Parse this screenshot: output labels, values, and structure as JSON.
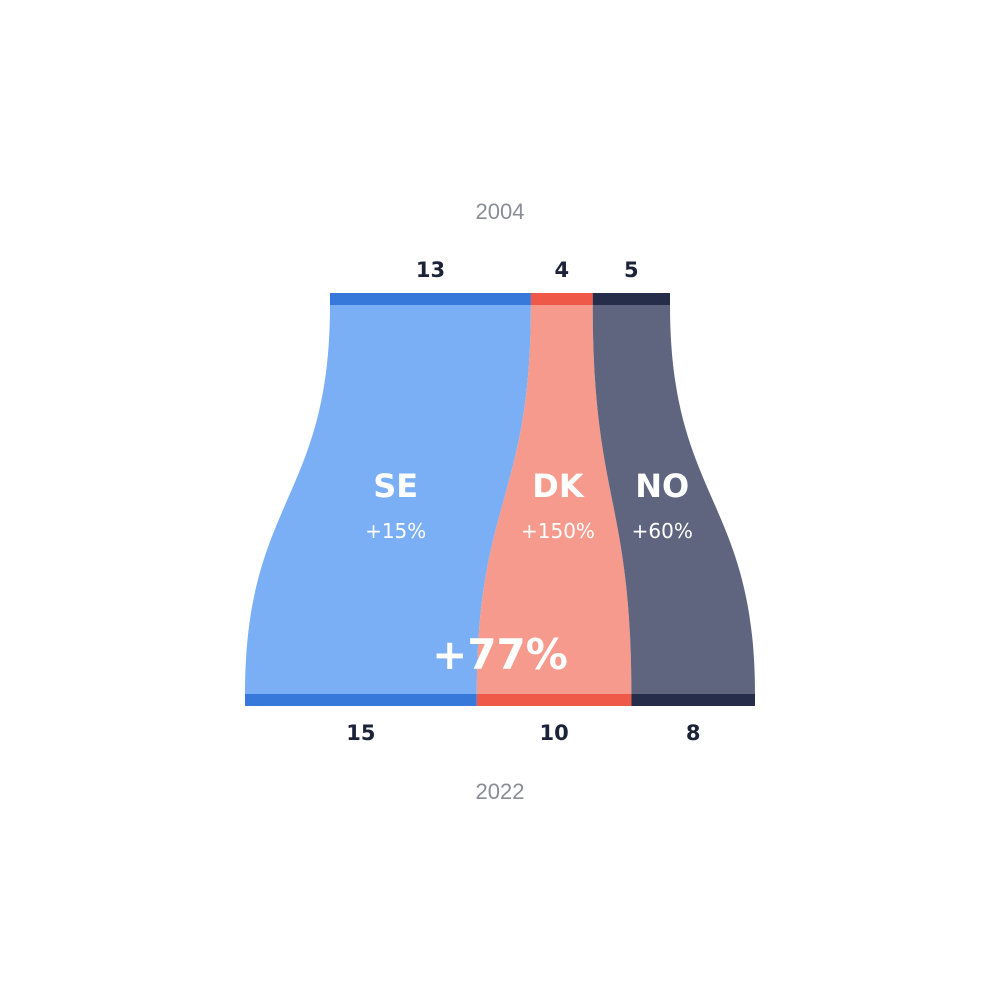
{
  "chart_data": {
    "type": "area",
    "subtype": "funnel-flow comparison",
    "start_label": "2004",
    "end_label": "2022",
    "total_change_label": "+77%",
    "series": [
      {
        "name": "SE",
        "start": 13,
        "end": 15,
        "change_label": "+15%",
        "color": "#7aaef5",
        "band_color": "#3778db"
      },
      {
        "name": "DK",
        "start": 4,
        "end": 10,
        "change_label": "+150%",
        "color": "#f59a8c",
        "band_color": "#ee5a47"
      },
      {
        "name": "NO",
        "start": 5,
        "end": 8,
        "change_label": "+60%",
        "color": "#5f657e",
        "band_color": "#262d4b"
      }
    ]
  }
}
